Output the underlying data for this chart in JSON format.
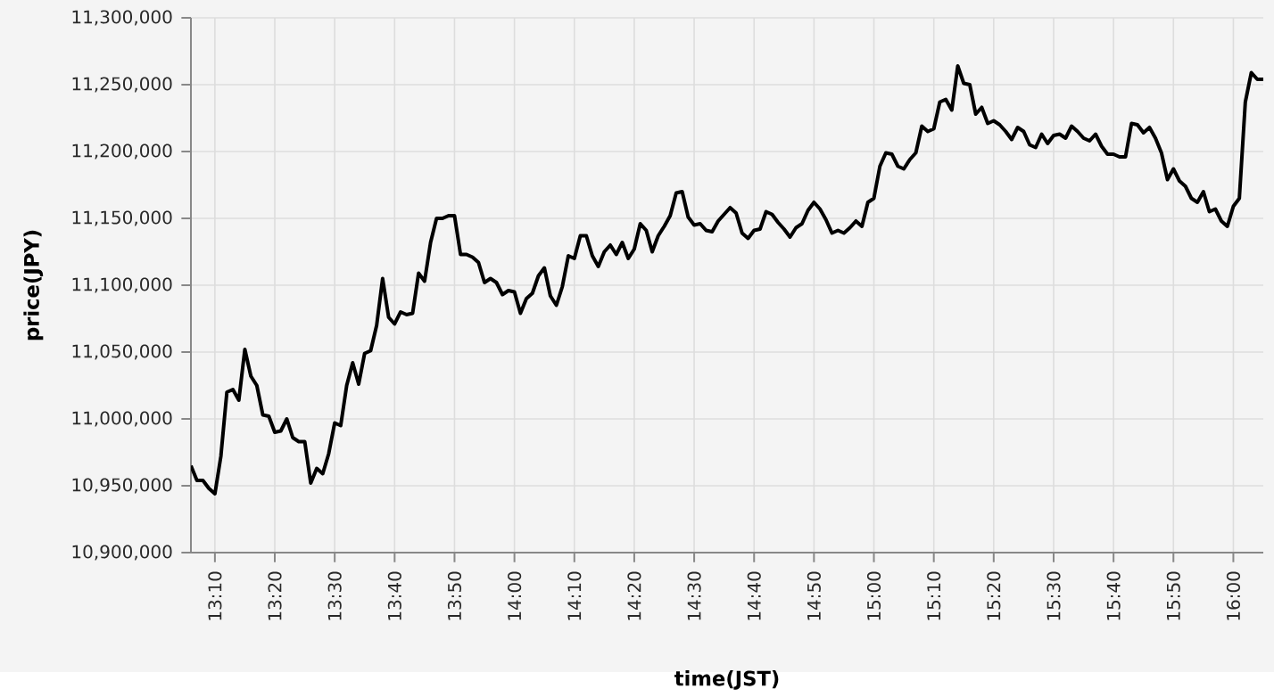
{
  "chart_data": {
    "type": "line",
    "xlabel": "time(JST)",
    "ylabel": "price(JPY)",
    "xlim": [
      13.1,
      16.0833
    ],
    "ylim": [
      10900000,
      11300000
    ],
    "xticks": [
      {
        "value": 13.1667,
        "label": "13:10"
      },
      {
        "value": 13.3333,
        "label": "13:20"
      },
      {
        "value": 13.5,
        "label": "13:30"
      },
      {
        "value": 13.6667,
        "label": "13:40"
      },
      {
        "value": 13.8333,
        "label": "13:50"
      },
      {
        "value": 14,
        "label": "14:00"
      },
      {
        "value": 14.1667,
        "label": "14:10"
      },
      {
        "value": 14.3333,
        "label": "14:20"
      },
      {
        "value": 14.5,
        "label": "14:30"
      },
      {
        "value": 14.6667,
        "label": "14:40"
      },
      {
        "value": 14.8333,
        "label": "14:50"
      },
      {
        "value": 15,
        "label": "15:00"
      },
      {
        "value": 15.1667,
        "label": "15:10"
      },
      {
        "value": 15.3333,
        "label": "15:20"
      },
      {
        "value": 15.5,
        "label": "15:30"
      },
      {
        "value": 15.6667,
        "label": "15:40"
      },
      {
        "value": 15.8333,
        "label": "15:50"
      },
      {
        "value": 16,
        "label": "16:00"
      }
    ],
    "yticks": [
      {
        "value": 10900000,
        "label": "10,900,000"
      },
      {
        "value": 10950000,
        "label": "10,950,000"
      },
      {
        "value": 11000000,
        "label": "11,000,000"
      },
      {
        "value": 11050000,
        "label": "11,050,000"
      },
      {
        "value": 11100000,
        "label": "11,100,000"
      },
      {
        "value": 11150000,
        "label": "11,150,000"
      },
      {
        "value": 11200000,
        "label": "11,200,000"
      },
      {
        "value": 11250000,
        "label": "11,250,000"
      },
      {
        "value": 11300000,
        "label": "11,300,000"
      }
    ],
    "grid": true,
    "series": [
      {
        "color": "#000000",
        "x": [
          13.1,
          13.1167,
          13.1333,
          13.15,
          13.1667,
          13.1833,
          13.2,
          13.2167,
          13.2333,
          13.25,
          13.2667,
          13.2833,
          13.3,
          13.3167,
          13.3333,
          13.35,
          13.3667,
          13.3833,
          13.4,
          13.4167,
          13.4333,
          13.45,
          13.4667,
          13.4833,
          13.5,
          13.5167,
          13.5333,
          13.55,
          13.5667,
          13.5833,
          13.6,
          13.6167,
          13.6333,
          13.65,
          13.6667,
          13.6833,
          13.7,
          13.7167,
          13.7333,
          13.75,
          13.7667,
          13.7833,
          13.8,
          13.8167,
          13.8333,
          13.85,
          13.8667,
          13.8833,
          13.9,
          13.9167,
          13.9333,
          13.95,
          13.9667,
          13.9833,
          14,
          14.0167,
          14.0333,
          14.05,
          14.0667,
          14.0833,
          14.1,
          14.1167,
          14.1333,
          14.15,
          14.1667,
          14.1833,
          14.2,
          14.2167,
          14.2333,
          14.25,
          14.2667,
          14.2833,
          14.3,
          14.3167,
          14.3333,
          14.35,
          14.3667,
          14.3833,
          14.4,
          14.4167,
          14.4333,
          14.45,
          14.4667,
          14.4833,
          14.5,
          14.5167,
          14.5333,
          14.55,
          14.5667,
          14.5833,
          14.6,
          14.6167,
          14.6333,
          14.65,
          14.6667,
          14.6833,
          14.7,
          14.7167,
          14.7333,
          14.75,
          14.7667,
          14.7833,
          14.8,
          14.8167,
          14.8333,
          14.85,
          14.8667,
          14.8833,
          14.9,
          14.9167,
          14.9333,
          14.95,
          14.9667,
          14.9833,
          15,
          15.0167,
          15.0333,
          15.05,
          15.0667,
          15.0833,
          15.1,
          15.1167,
          15.1333,
          15.15,
          15.1667,
          15.1833,
          15.2,
          15.2167,
          15.2333,
          15.25,
          15.2667,
          15.2833,
          15.3,
          15.3167,
          15.3333,
          15.35,
          15.3667,
          15.3833,
          15.4,
          15.4167,
          15.4333,
          15.45,
          15.4667,
          15.4833,
          15.5,
          15.5167,
          15.5333,
          15.55,
          15.5667,
          15.5833,
          15.6,
          15.6167,
          15.6333,
          15.65,
          15.6667,
          15.6833,
          15.7,
          15.7167,
          15.7333,
          15.75,
          15.7667,
          15.7833,
          15.8,
          15.8167,
          15.8333,
          15.85,
          15.8667,
          15.8833,
          15.9,
          15.9167,
          15.9333,
          15.95,
          15.9667,
          15.9833,
          16,
          16.0167,
          16.0333,
          16.05,
          16.0667,
          16.0833
        ],
        "values": [
          10965000,
          10954000,
          10954000,
          10948000,
          10944000,
          10972000,
          11020000,
          11022000,
          11014000,
          11052000,
          11032000,
          11025000,
          11003000,
          11002000,
          10990000,
          10991000,
          11000000,
          10986000,
          10983000,
          10983000,
          10952000,
          10963000,
          10959000,
          10974000,
          10997000,
          10995000,
          11025000,
          11042000,
          11026000,
          11049000,
          11051000,
          11070000,
          11105000,
          11076000,
          11071000,
          11080000,
          11078000,
          11079000,
          11109000,
          11103000,
          11132000,
          11150000,
          11150000,
          11152000,
          11152000,
          11123000,
          11123000,
          11121000,
          11117000,
          11102000,
          11105000,
          11102000,
          11093000,
          11096000,
          11095000,
          11079000,
          11090000,
          11094000,
          11107000,
          11113000,
          11092000,
          11085000,
          11099000,
          11122000,
          11120000,
          11137000,
          11137000,
          11122000,
          11114000,
          11125000,
          11130000,
          11123000,
          11132000,
          11120000,
          11127000,
          11146000,
          11141000,
          11125000,
          11137000,
          11144000,
          11152000,
          11169000,
          11170000,
          11151000,
          11145000,
          11146000,
          11141000,
          11140000,
          11148000,
          11153000,
          11158000,
          11154000,
          11139000,
          11135000,
          11141000,
          11142000,
          11155000,
          11153000,
          11147000,
          11142000,
          11136000,
          11143000,
          11146000,
          11156000,
          11162000,
          11157000,
          11149000,
          11139000,
          11141000,
          11139000,
          11143000,
          11148000,
          11144000,
          11162000,
          11165000,
          11189000,
          11199000,
          11198000,
          11189000,
          11187000,
          11194000,
          11199000,
          11219000,
          11215000,
          11217000,
          11237000,
          11239000,
          11231000,
          11264000,
          11251000,
          11250000,
          11228000,
          11233000,
          11221000,
          11223000,
          11220000,
          11215000,
          11209000,
          11218000,
          11215000,
          11205000,
          11203000,
          11213000,
          11206000,
          11212000,
          11213000,
          11210000,
          11219000,
          11215000,
          11210000,
          11208000,
          11213000,
          11204000,
          11198000,
          11198000,
          11196000,
          11196000,
          11221000,
          11220000,
          11214000,
          11218000,
          11210000,
          11199000,
          11179000,
          11187000,
          11178000,
          11174000,
          11165000,
          11162000,
          11170000,
          11155000,
          11157000,
          11148000,
          11144000,
          11159000,
          11165000,
          11237000,
          11259000,
          11254000,
          11254000
        ]
      }
    ]
  }
}
